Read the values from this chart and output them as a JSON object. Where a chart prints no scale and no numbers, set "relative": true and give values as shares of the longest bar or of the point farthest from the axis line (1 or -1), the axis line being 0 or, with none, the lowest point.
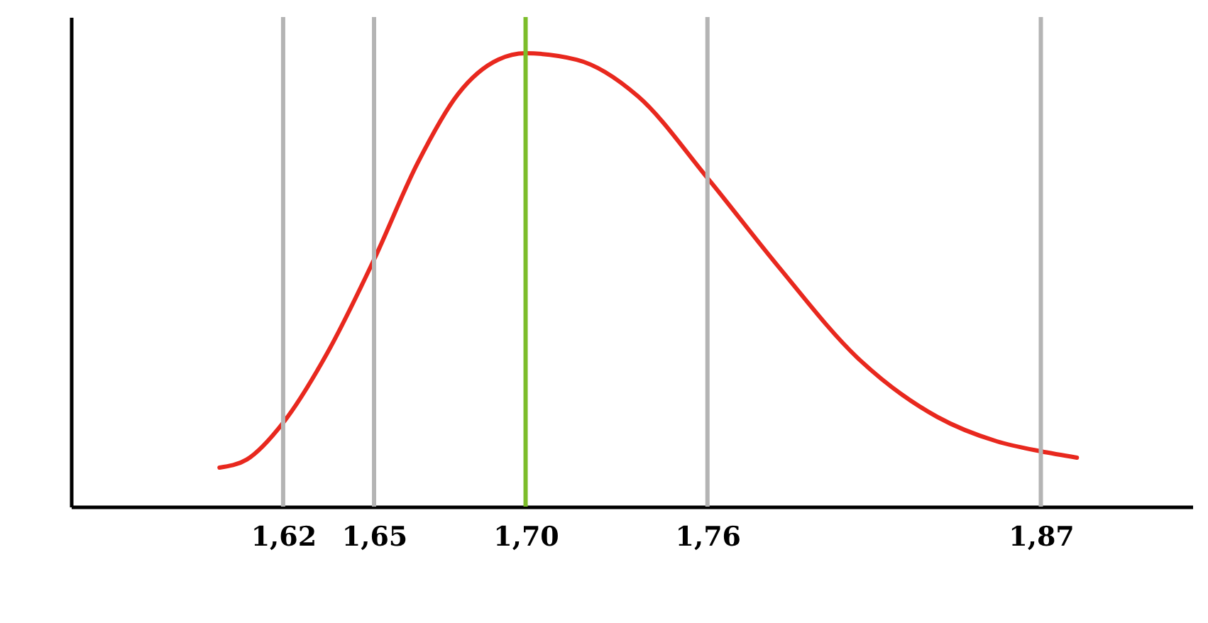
{
  "chart_data": {
    "type": "line",
    "relative": true,
    "x": [
      1.599,
      1.608,
      1.62,
      1.6345,
      1.65,
      1.6643,
      1.6777,
      1.691,
      1.7,
      1.7168,
      1.7371,
      1.76,
      1.7831,
      1.8094,
      1.8358,
      1.8555,
      1.87,
      1.8819
    ],
    "series": [
      {
        "color": "#e8281e",
        "values": [
          0.086,
          0.104,
          0.185,
          0.338,
          0.545,
          0.757,
          0.91,
          0.986,
          1.0,
          0.986,
          0.905,
          0.725,
          0.532,
          0.329,
          0.198,
          0.144,
          0.122,
          0.108
        ]
      }
    ],
    "xlim": [
      1.55,
      1.92
    ],
    "xticks": [
      {
        "value": 1.62,
        "label": "1,62"
      },
      {
        "value": 1.65,
        "label": "1,65"
      },
      {
        "value": 1.7,
        "label": "1,70"
      },
      {
        "value": 1.76,
        "label": "1,76"
      },
      {
        "value": 1.87,
        "label": "1,87"
      }
    ],
    "ref_lines": [
      {
        "axis": "x",
        "value": 1.62,
        "color": "#b4b4b4"
      },
      {
        "axis": "x",
        "value": 1.65,
        "color": "#b4b4b4"
      },
      {
        "axis": "x",
        "value": 1.7,
        "color": "#7cbd2a"
      },
      {
        "axis": "x",
        "value": 1.76,
        "color": "#b4b4b4"
      },
      {
        "axis": "x",
        "value": 1.87,
        "color": "#b4b4b4"
      }
    ],
    "marker": "none",
    "line_style": "solid"
  }
}
